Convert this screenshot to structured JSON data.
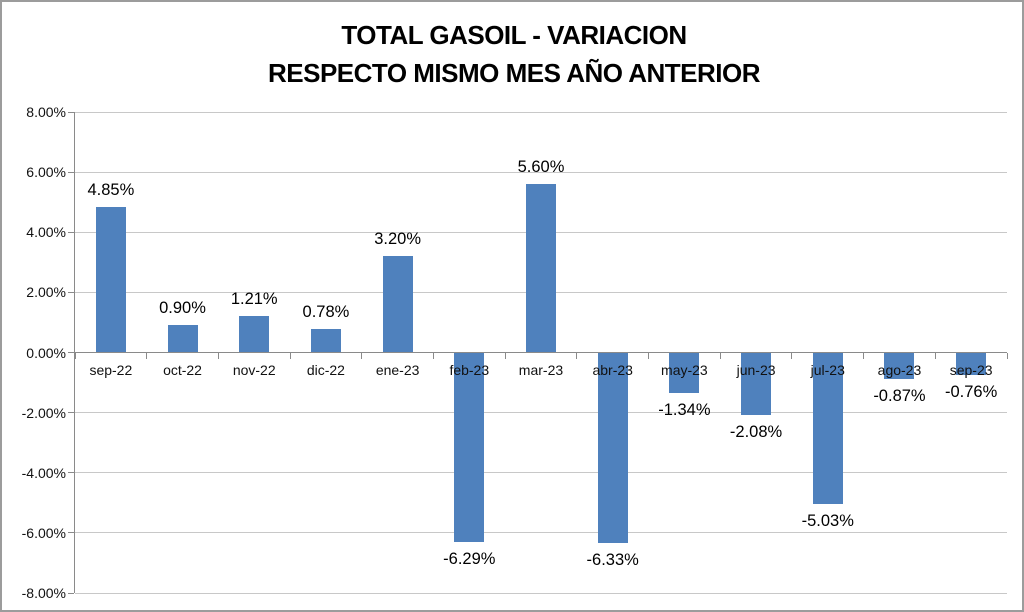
{
  "title": {
    "line1": "TOTAL GASOIL - VARIACION",
    "line2": "RESPECTO MISMO MES AÑO ANTERIOR"
  },
  "chart_data": {
    "type": "bar",
    "title": "TOTAL GASOIL - VARIACION RESPECTO MISMO MES AÑO ANTERIOR",
    "categories": [
      "sep-22",
      "oct-22",
      "nov-22",
      "dic-22",
      "ene-23",
      "feb-23",
      "mar-23",
      "abr-23",
      "may-23",
      "jun-23",
      "jul-23",
      "ago-23",
      "sep-23"
    ],
    "values": [
      4.85,
      0.9,
      1.21,
      0.78,
      3.2,
      -6.29,
      5.6,
      -6.33,
      -1.34,
      -2.08,
      -5.03,
      -0.87,
      -0.76
    ],
    "data_labels": [
      "4.85%",
      "0.90%",
      "1.21%",
      "0.78%",
      "3.20%",
      "-6.29%",
      "5.60%",
      "-6.33%",
      "-1.34%",
      "-2.08%",
      "-5.03%",
      "-0.87%",
      "-0.76%"
    ],
    "y_tick_labels": [
      "8.00%",
      "6.00%",
      "4.00%",
      "2.00%",
      "0.00%",
      "-2.00%",
      "-4.00%",
      "-6.00%",
      "-8.00%"
    ],
    "y_tick_values": [
      8,
      6,
      4,
      2,
      0,
      -2,
      -4,
      -6,
      -8
    ],
    "ylim": [
      -8,
      8
    ],
    "y_step": 2,
    "xlabel": "",
    "ylabel": "",
    "grid": true,
    "legend": "none",
    "colors": {
      "bar": "#4f81bd",
      "gridline": "#c8c8c8",
      "axis": "#8a8a8a",
      "label_text": "#000000",
      "frame_border": "#9c9c9c"
    }
  }
}
